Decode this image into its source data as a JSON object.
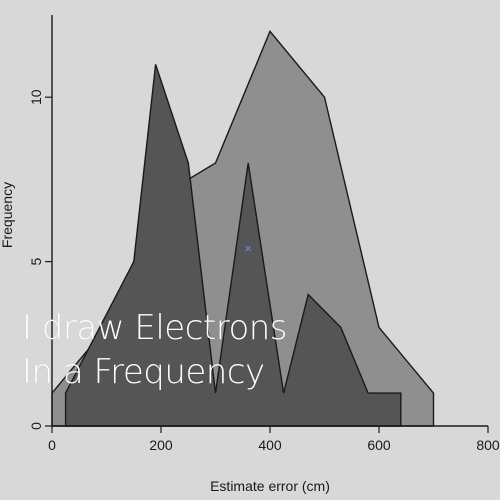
{
  "chart_data": {
    "type": "area",
    "xlabel": "Estimate error (cm)",
    "ylabel": "Frequency",
    "xlim": [
      0,
      800
    ],
    "ylim": [
      0,
      12.5
    ],
    "x_ticks": [
      0,
      200,
      400,
      600,
      800
    ],
    "y_ticks": [
      0,
      5,
      10
    ],
    "grid": false,
    "series": [
      {
        "color": "#8f8f8f",
        "points": [
          [
            0,
            1
          ],
          [
            100,
            3
          ],
          [
            200,
            7
          ],
          [
            300,
            8
          ],
          [
            400,
            12
          ],
          [
            500,
            10
          ],
          [
            600,
            3
          ],
          [
            700,
            1
          ],
          [
            700,
            0
          ]
        ]
      },
      {
        "color": "#555555",
        "points": [
          [
            25,
            0
          ],
          [
            25,
            1
          ],
          [
            150,
            5
          ],
          [
            190,
            11
          ],
          [
            250,
            8
          ],
          [
            300,
            1
          ],
          [
            360,
            8
          ],
          [
            425,
            1
          ],
          [
            470,
            4
          ],
          [
            530,
            3
          ],
          [
            580,
            1
          ],
          [
            640,
            1
          ],
          [
            640,
            0
          ]
        ]
      }
    ],
    "marker": {
      "x": 360,
      "y": 5.4,
      "color": "#6a7fd0"
    }
  },
  "overlay": {
    "line1": "I draw Electrons",
    "line2": "In a Frequency"
  }
}
